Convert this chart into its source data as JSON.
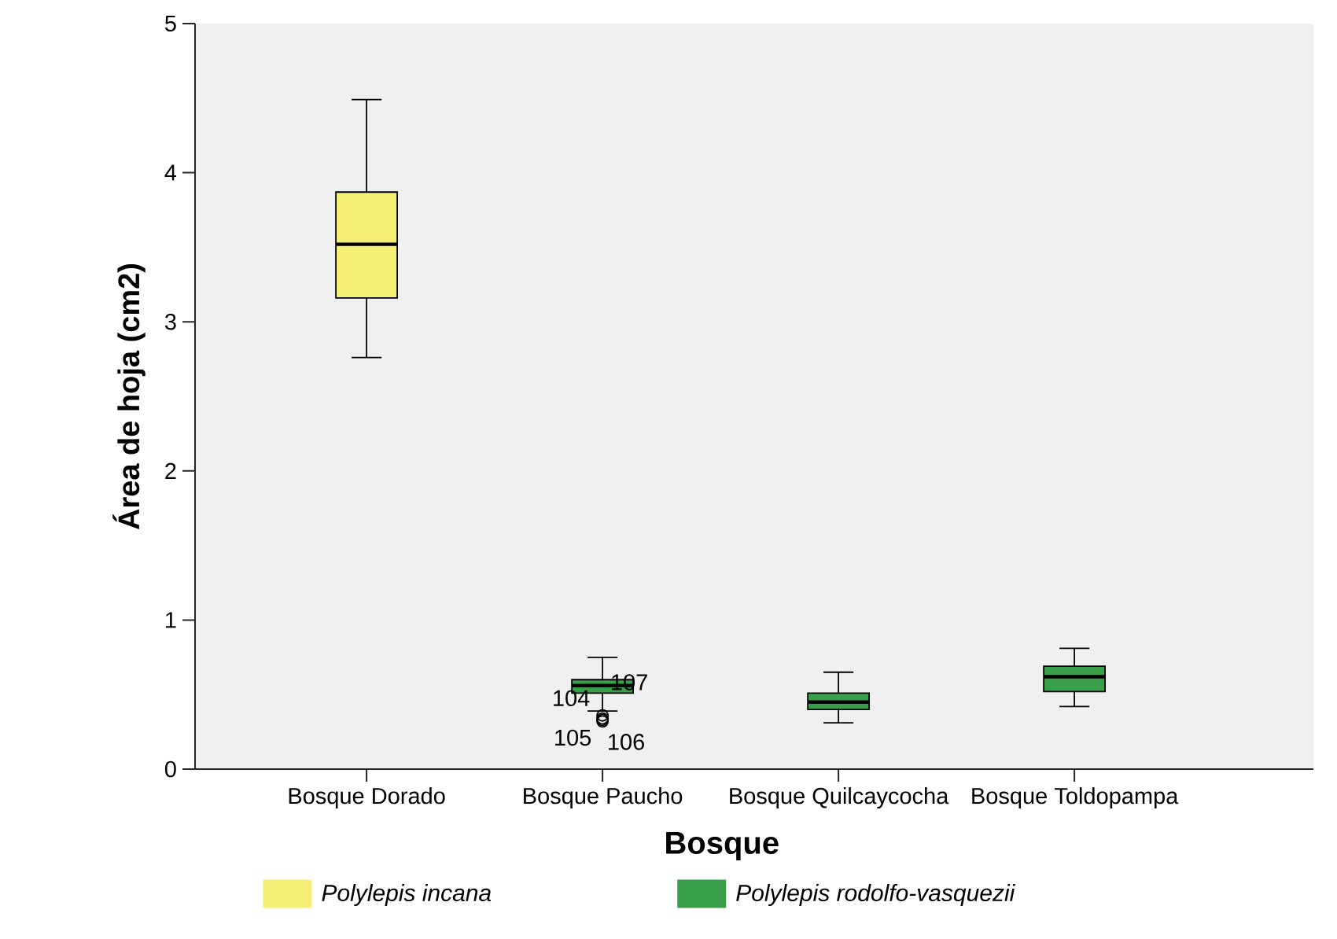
{
  "chart_data": {
    "type": "box",
    "xlabel": "Bosque",
    "ylabel": "Área de hoja (cm2)",
    "categories": [
      "Bosque Dorado",
      "Bosque Paucho",
      "Bosque Quilcaycocha",
      "Bosque Toldopampa"
    ],
    "ylim": [
      0,
      5
    ],
    "yticks": [
      0,
      1,
      2,
      3,
      4,
      5
    ],
    "legend": "bottom",
    "series": [
      {
        "name": "Polylepis incana",
        "color": "#f5ef75",
        "boxes": [
          {
            "low": 2.76,
            "q1": 3.16,
            "median": 3.52,
            "q3": 3.87,
            "high": 4.49
          },
          null,
          null,
          null
        ]
      },
      {
        "name": "Polylepis rodolfo-vasquezii",
        "color": "#3a9f4a",
        "boxes": [
          null,
          {
            "low": 0.39,
            "q1": 0.51,
            "median": 0.56,
            "q3": 0.6,
            "high": 0.75,
            "outliers": [
              0.36,
              0.34,
              0.33,
              0.32
            ]
          },
          {
            "low": 0.31,
            "q1": 0.4,
            "median": 0.45,
            "q3": 0.51,
            "high": 0.65
          },
          {
            "low": 0.42,
            "q1": 0.52,
            "median": 0.62,
            "q3": 0.69,
            "high": 0.81
          }
        ]
      }
    ],
    "annotations": [
      {
        "text": "104",
        "x": "Bosque Paucho",
        "y": 0.36
      },
      "105",
      "106",
      {
        "text": "107",
        "x": "Bosque Paucho",
        "y": 0.34
      }
    ]
  }
}
